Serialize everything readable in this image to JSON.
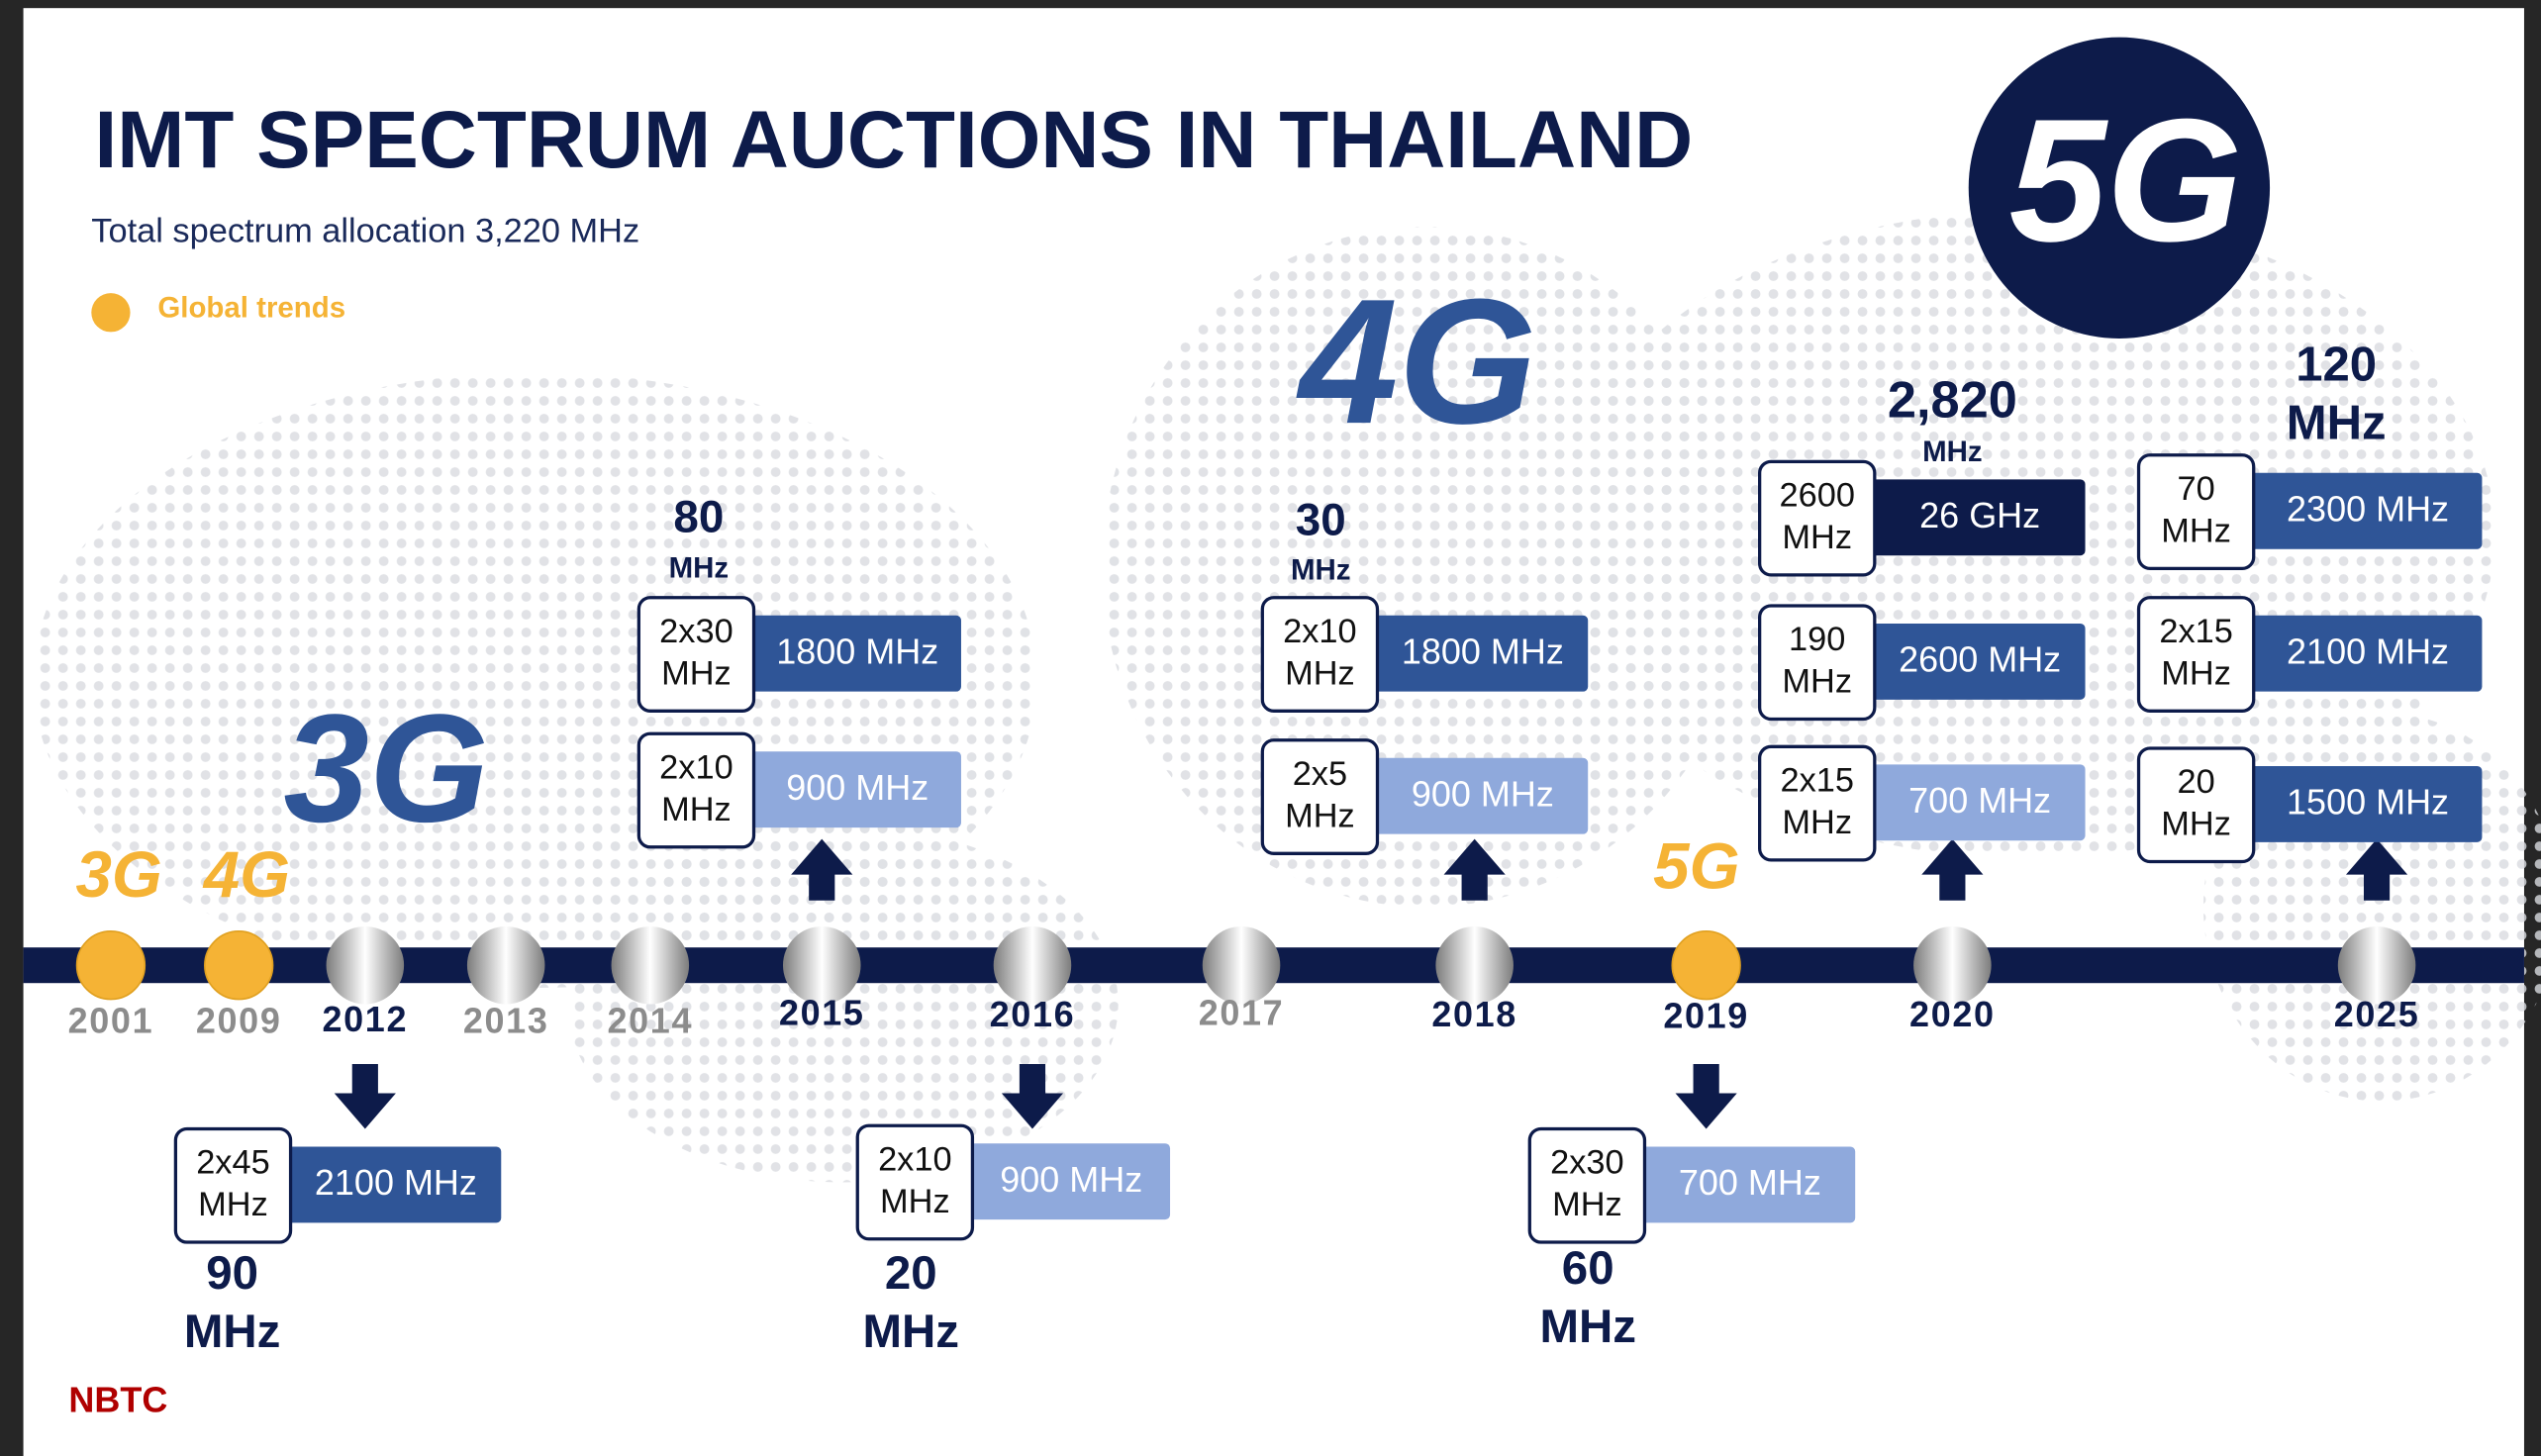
{
  "header": {
    "title": "IMT SPECTRUM AUCTIONS IN THAILAND",
    "subtitle": "Total spectrum allocation 3,220 MHz"
  },
  "legend": {
    "label": "Global trends",
    "color": "#f5b335"
  },
  "eras": [
    "3G",
    "4G",
    "5G"
  ],
  "timeline": [
    {
      "year": "2001",
      "trend": "3G"
    },
    {
      "year": "2009",
      "trend": "4G"
    },
    {
      "year": "2012"
    },
    {
      "year": "2013"
    },
    {
      "year": "2014"
    },
    {
      "year": "2015"
    },
    {
      "year": "2016"
    },
    {
      "year": "2017"
    },
    {
      "year": "2018"
    },
    {
      "year": "2019",
      "trend": "5G"
    },
    {
      "year": "2020"
    },
    {
      "year": "2025"
    }
  ],
  "auctions": [
    {
      "total": "90",
      "unit": "MHz",
      "bands": [
        {
          "amount": [
            "2x45",
            "MHz"
          ],
          "band": "2100 MHz",
          "color": "#2f5597"
        }
      ]
    },
    {
      "total": "80",
      "unit": "MHz",
      "bands": [
        {
          "amount": [
            "2x30",
            "MHz"
          ],
          "band": "1800 MHz",
          "color": "#2f5597"
        },
        {
          "amount": [
            "2x10",
            "MHz"
          ],
          "band": "900 MHz",
          "color": "#8fa9dc"
        }
      ]
    },
    {
      "total": "20",
      "unit": "MHz",
      "bands": [
        {
          "amount": [
            "2x10",
            "MHz"
          ],
          "band": "900 MHz",
          "color": "#8fa9dc"
        }
      ]
    },
    {
      "total": "30",
      "unit": "MHz",
      "bands": [
        {
          "amount": [
            "2x10",
            "MHz"
          ],
          "band": "1800 MHz",
          "color": "#2f5597"
        },
        {
          "amount": [
            "2x5",
            "MHz"
          ],
          "band": "900 MHz",
          "color": "#8fa9dc"
        }
      ]
    },
    {
      "total": "60",
      "unit": "MHz",
      "bands": [
        {
          "amount": [
            "2x30",
            "MHz"
          ],
          "band": "700 MHz",
          "color": "#8fa9dc"
        }
      ]
    },
    {
      "total": "2,820",
      "unit": "MHz",
      "bands": [
        {
          "amount": [
            "2600",
            "MHz"
          ],
          "band": "26 GHz",
          "color": "#0d1b4a"
        },
        {
          "amount": [
            "190",
            "MHz"
          ],
          "band": "2600 MHz",
          "color": "#2f5597"
        },
        {
          "amount": [
            "2x15",
            "MHz"
          ],
          "band": "700 MHz",
          "color": "#8fa9dc"
        }
      ]
    },
    {
      "total": "120",
      "unit": "MHz",
      "bands": [
        {
          "amount": [
            "70",
            "MHz"
          ],
          "band": "2300 MHz",
          "color": "#2f5597"
        },
        {
          "amount": [
            "2x15",
            "MHz"
          ],
          "band": "2100 MHz",
          "color": "#2f5597"
        },
        {
          "amount": [
            "20",
            "MHz"
          ],
          "band": "1500 MHz",
          "color": "#2f5597"
        }
      ]
    }
  ],
  "source": "NBTC"
}
